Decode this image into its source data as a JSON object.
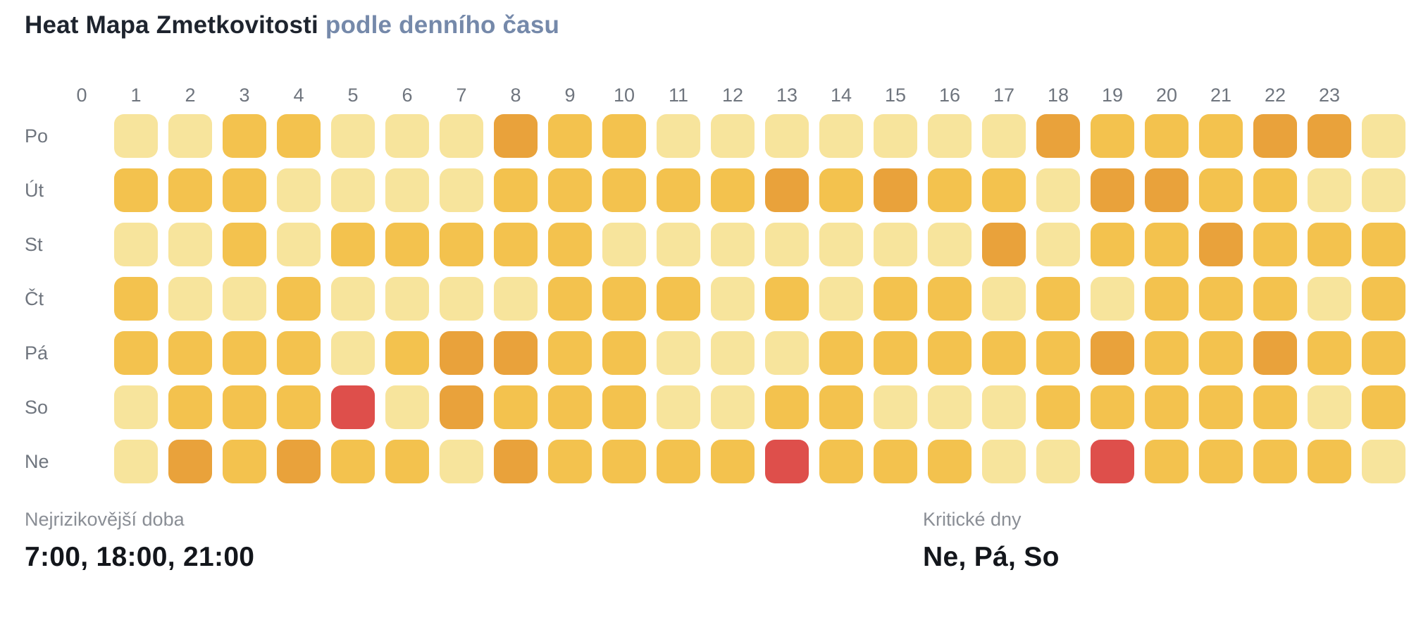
{
  "title": {
    "main": "Heat Mapa Zmetkovitosti",
    "accent": "podle denního času"
  },
  "chart_data": {
    "type": "heatmap",
    "title": "Heat Mapa Zmetkovitosti podle denního času",
    "x_labels": [
      "0",
      "1",
      "2",
      "3",
      "4",
      "5",
      "6",
      "7",
      "8",
      "9",
      "10",
      "11",
      "12",
      "13",
      "14",
      "15",
      "16",
      "17",
      "18",
      "19",
      "20",
      "21",
      "22",
      "23"
    ],
    "y_labels": [
      "Po",
      "Út",
      "St",
      "Čt",
      "Pá",
      "So",
      "Ne"
    ],
    "values": [
      [
        1,
        1,
        2,
        2,
        1,
        1,
        1,
        3,
        2,
        2,
        1,
        1,
        1,
        1,
        1,
        1,
        1,
        3,
        2,
        2,
        2,
        3,
        3,
        1
      ],
      [
        2,
        2,
        2,
        1,
        1,
        1,
        1,
        2,
        2,
        2,
        2,
        2,
        3,
        2,
        3,
        2,
        2,
        1,
        3,
        3,
        2,
        2,
        1,
        1
      ],
      [
        1,
        1,
        2,
        1,
        2,
        2,
        2,
        2,
        2,
        1,
        1,
        1,
        1,
        1,
        1,
        1,
        3,
        1,
        2,
        2,
        3,
        2,
        2,
        2
      ],
      [
        2,
        1,
        1,
        2,
        1,
        1,
        1,
        1,
        2,
        2,
        2,
        1,
        2,
        1,
        2,
        2,
        1,
        2,
        1,
        2,
        2,
        2,
        1,
        2
      ],
      [
        2,
        2,
        2,
        2,
        1,
        2,
        3,
        3,
        2,
        2,
        1,
        1,
        1,
        2,
        2,
        2,
        2,
        2,
        3,
        2,
        2,
        3,
        2,
        2
      ],
      [
        1,
        2,
        2,
        2,
        4,
        1,
        3,
        2,
        2,
        2,
        1,
        1,
        2,
        2,
        1,
        1,
        1,
        2,
        2,
        2,
        2,
        2,
        1,
        2
      ],
      [
        1,
        3,
        2,
        3,
        2,
        2,
        1,
        3,
        2,
        2,
        2,
        2,
        4,
        2,
        2,
        2,
        1,
        1,
        4,
        2,
        2,
        2,
        2,
        1
      ]
    ],
    "levels": {
      "1": {
        "name": "low",
        "color": "#F7E49C"
      },
      "2": {
        "name": "medium",
        "color": "#F3C24E"
      },
      "3": {
        "name": "high",
        "color": "#E9A23B"
      },
      "4": {
        "name": "critical",
        "color": "#DE4F4B"
      }
    },
    "legend_position": "none",
    "grid": "off"
  },
  "stats": {
    "left": {
      "label": "Nejrizikovější doba",
      "value": "7:00, 18:00, 21:00"
    },
    "right": {
      "label": "Kritické dny",
      "value": "Ne, Pá, So"
    }
  },
  "colors": {
    "title_main": "#1e242e",
    "title_accent": "#7589aa",
    "axis_label": "#6f757e",
    "stat_label": "#8a8e95",
    "stat_value": "#13161b"
  }
}
